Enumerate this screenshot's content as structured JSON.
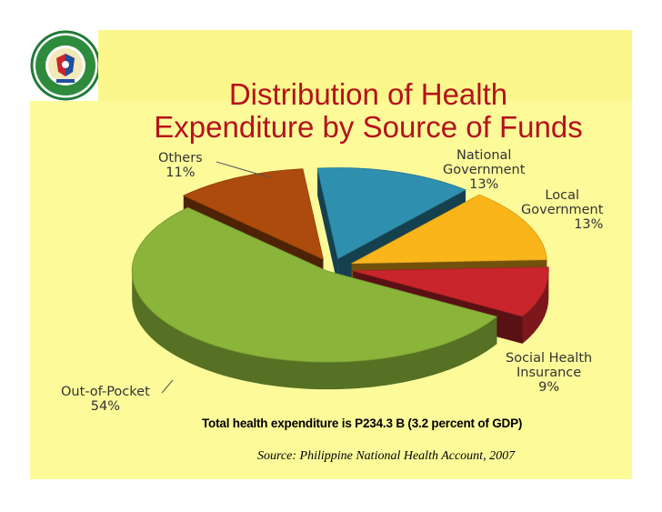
{
  "slide": {
    "title_line1": "Distribution of Health",
    "title_line2": "Expenditure by Source of Funds",
    "total_note": "Total health expenditure  is P234.3 B  (3.2 percent of GDP)",
    "source": "Source: Philippine National Health Account, 2007",
    "logo_icon": "department-of-health-seal-icon"
  },
  "chart_data": {
    "type": "pie",
    "title": "Distribution of Health Expenditure by Source of Funds",
    "unit": "%",
    "slices": [
      {
        "name": "National Government",
        "label_lines": [
          "National",
          "Government"
        ],
        "value_label": "13%",
        "value": 13,
        "color": "#2f8fae"
      },
      {
        "name": "Local Government",
        "label_lines": [
          "Local",
          "Government"
        ],
        "value_label": "13%",
        "value": 13,
        "color": "#fab51a"
      },
      {
        "name": "Social Health Insurance",
        "label_lines": [
          "Social Health",
          "Insurance"
        ],
        "value_label": "9%",
        "value": 9,
        "color": "#c8262c"
      },
      {
        "name": "Out-of-Pocket",
        "label_lines": [
          "Out-of-Pocket"
        ],
        "value_label": "54%",
        "value": 54,
        "color": "#8ab43a"
      },
      {
        "name": "Others",
        "label_lines": [
          "Others"
        ],
        "value_label": "11%",
        "value": 11,
        "color": "#ac4b0b"
      }
    ]
  }
}
